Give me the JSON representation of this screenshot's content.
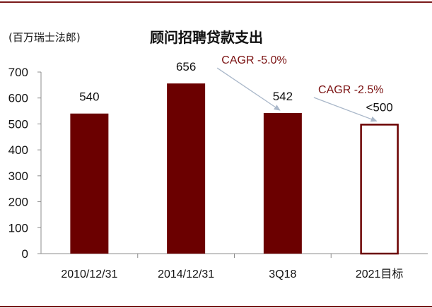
{
  "chart_data": {
    "type": "bar",
    "unit_label": "(百万瑞士法郎)",
    "title": "顾问招聘贷款支出",
    "categories": [
      "2010/12/31",
      "2014/12/31",
      "3Q18",
      "2021目标"
    ],
    "values": [
      540,
      656,
      542,
      500
    ],
    "data_labels": [
      "540",
      "656",
      "542",
      "<500"
    ],
    "bar_styles": [
      "filled",
      "filled",
      "filled",
      "outline"
    ],
    "ylim": [
      0,
      700
    ],
    "yticks": [
      "0",
      "100",
      "200",
      "300",
      "400",
      "500",
      "600",
      "700"
    ],
    "grid": false,
    "annotations": [
      {
        "text": "CAGR -5.0%",
        "from_category": 1,
        "to_category": 2
      },
      {
        "text": "CAGR -2.5%",
        "from_category": 2,
        "to_category": 3
      }
    ]
  },
  "colors": {
    "bar": "#6b0000",
    "annotation_text": "#7a1010",
    "arrow": "#a9b7c9",
    "axis": "#8c8c8c",
    "frame": "#7a1a1a"
  }
}
